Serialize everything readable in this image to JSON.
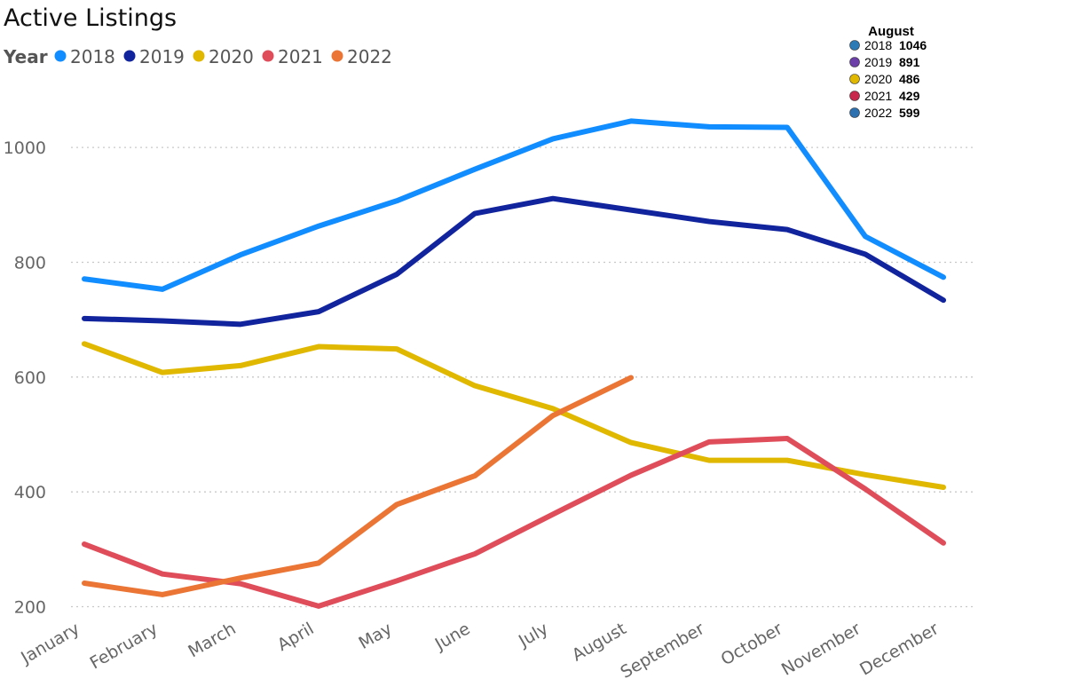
{
  "chart_data": {
    "type": "line",
    "title": "Active Listings",
    "legend_title": "Year",
    "legend_position": "top-left",
    "categories": [
      "January",
      "February",
      "March",
      "April",
      "May",
      "June",
      "July",
      "August",
      "September",
      "October",
      "November",
      "December"
    ],
    "ylim": [
      190,
      1110
    ],
    "yticks": [
      200,
      400,
      600,
      800,
      1000
    ],
    "grid": true,
    "series": [
      {
        "name": "2018",
        "color": "#118dff",
        "values": [
          771,
          753,
          813,
          863,
          907,
          962,
          1015,
          1046,
          1036,
          1035,
          845,
          774
        ]
      },
      {
        "name": "2019",
        "color": "#12239e",
        "values": [
          702,
          698,
          692,
          714,
          779,
          885,
          911,
          891,
          871,
          857,
          814,
          734
        ]
      },
      {
        "name": "2020",
        "color": "#e0b800",
        "values": [
          658,
          608,
          620,
          653,
          649,
          585,
          545,
          486,
          455,
          455,
          430,
          408
        ]
      },
      {
        "name": "2021",
        "color": "#e04d5a",
        "values": [
          309,
          257,
          240,
          201,
          245,
          292,
          361,
          429,
          487,
          493,
          405,
          311
        ]
      },
      {
        "name": "2022",
        "color": "#ea7535",
        "values": [
          241,
          221,
          250,
          276,
          378,
          428,
          533,
          599,
          null,
          null,
          null,
          null
        ]
      }
    ]
  },
  "tooltip": {
    "title": "August",
    "entries": [
      {
        "year": "2018",
        "value": "1046",
        "color": "#2c7bb6"
      },
      {
        "year": "2019",
        "value": "891",
        "color": "#6c3fa8"
      },
      {
        "year": "2020",
        "value": "486",
        "color": "#e0b800"
      },
      {
        "year": "2021",
        "value": "429",
        "color": "#c8284b"
      },
      {
        "year": "2022",
        "value": "599",
        "color": "#2c70b0"
      }
    ]
  }
}
